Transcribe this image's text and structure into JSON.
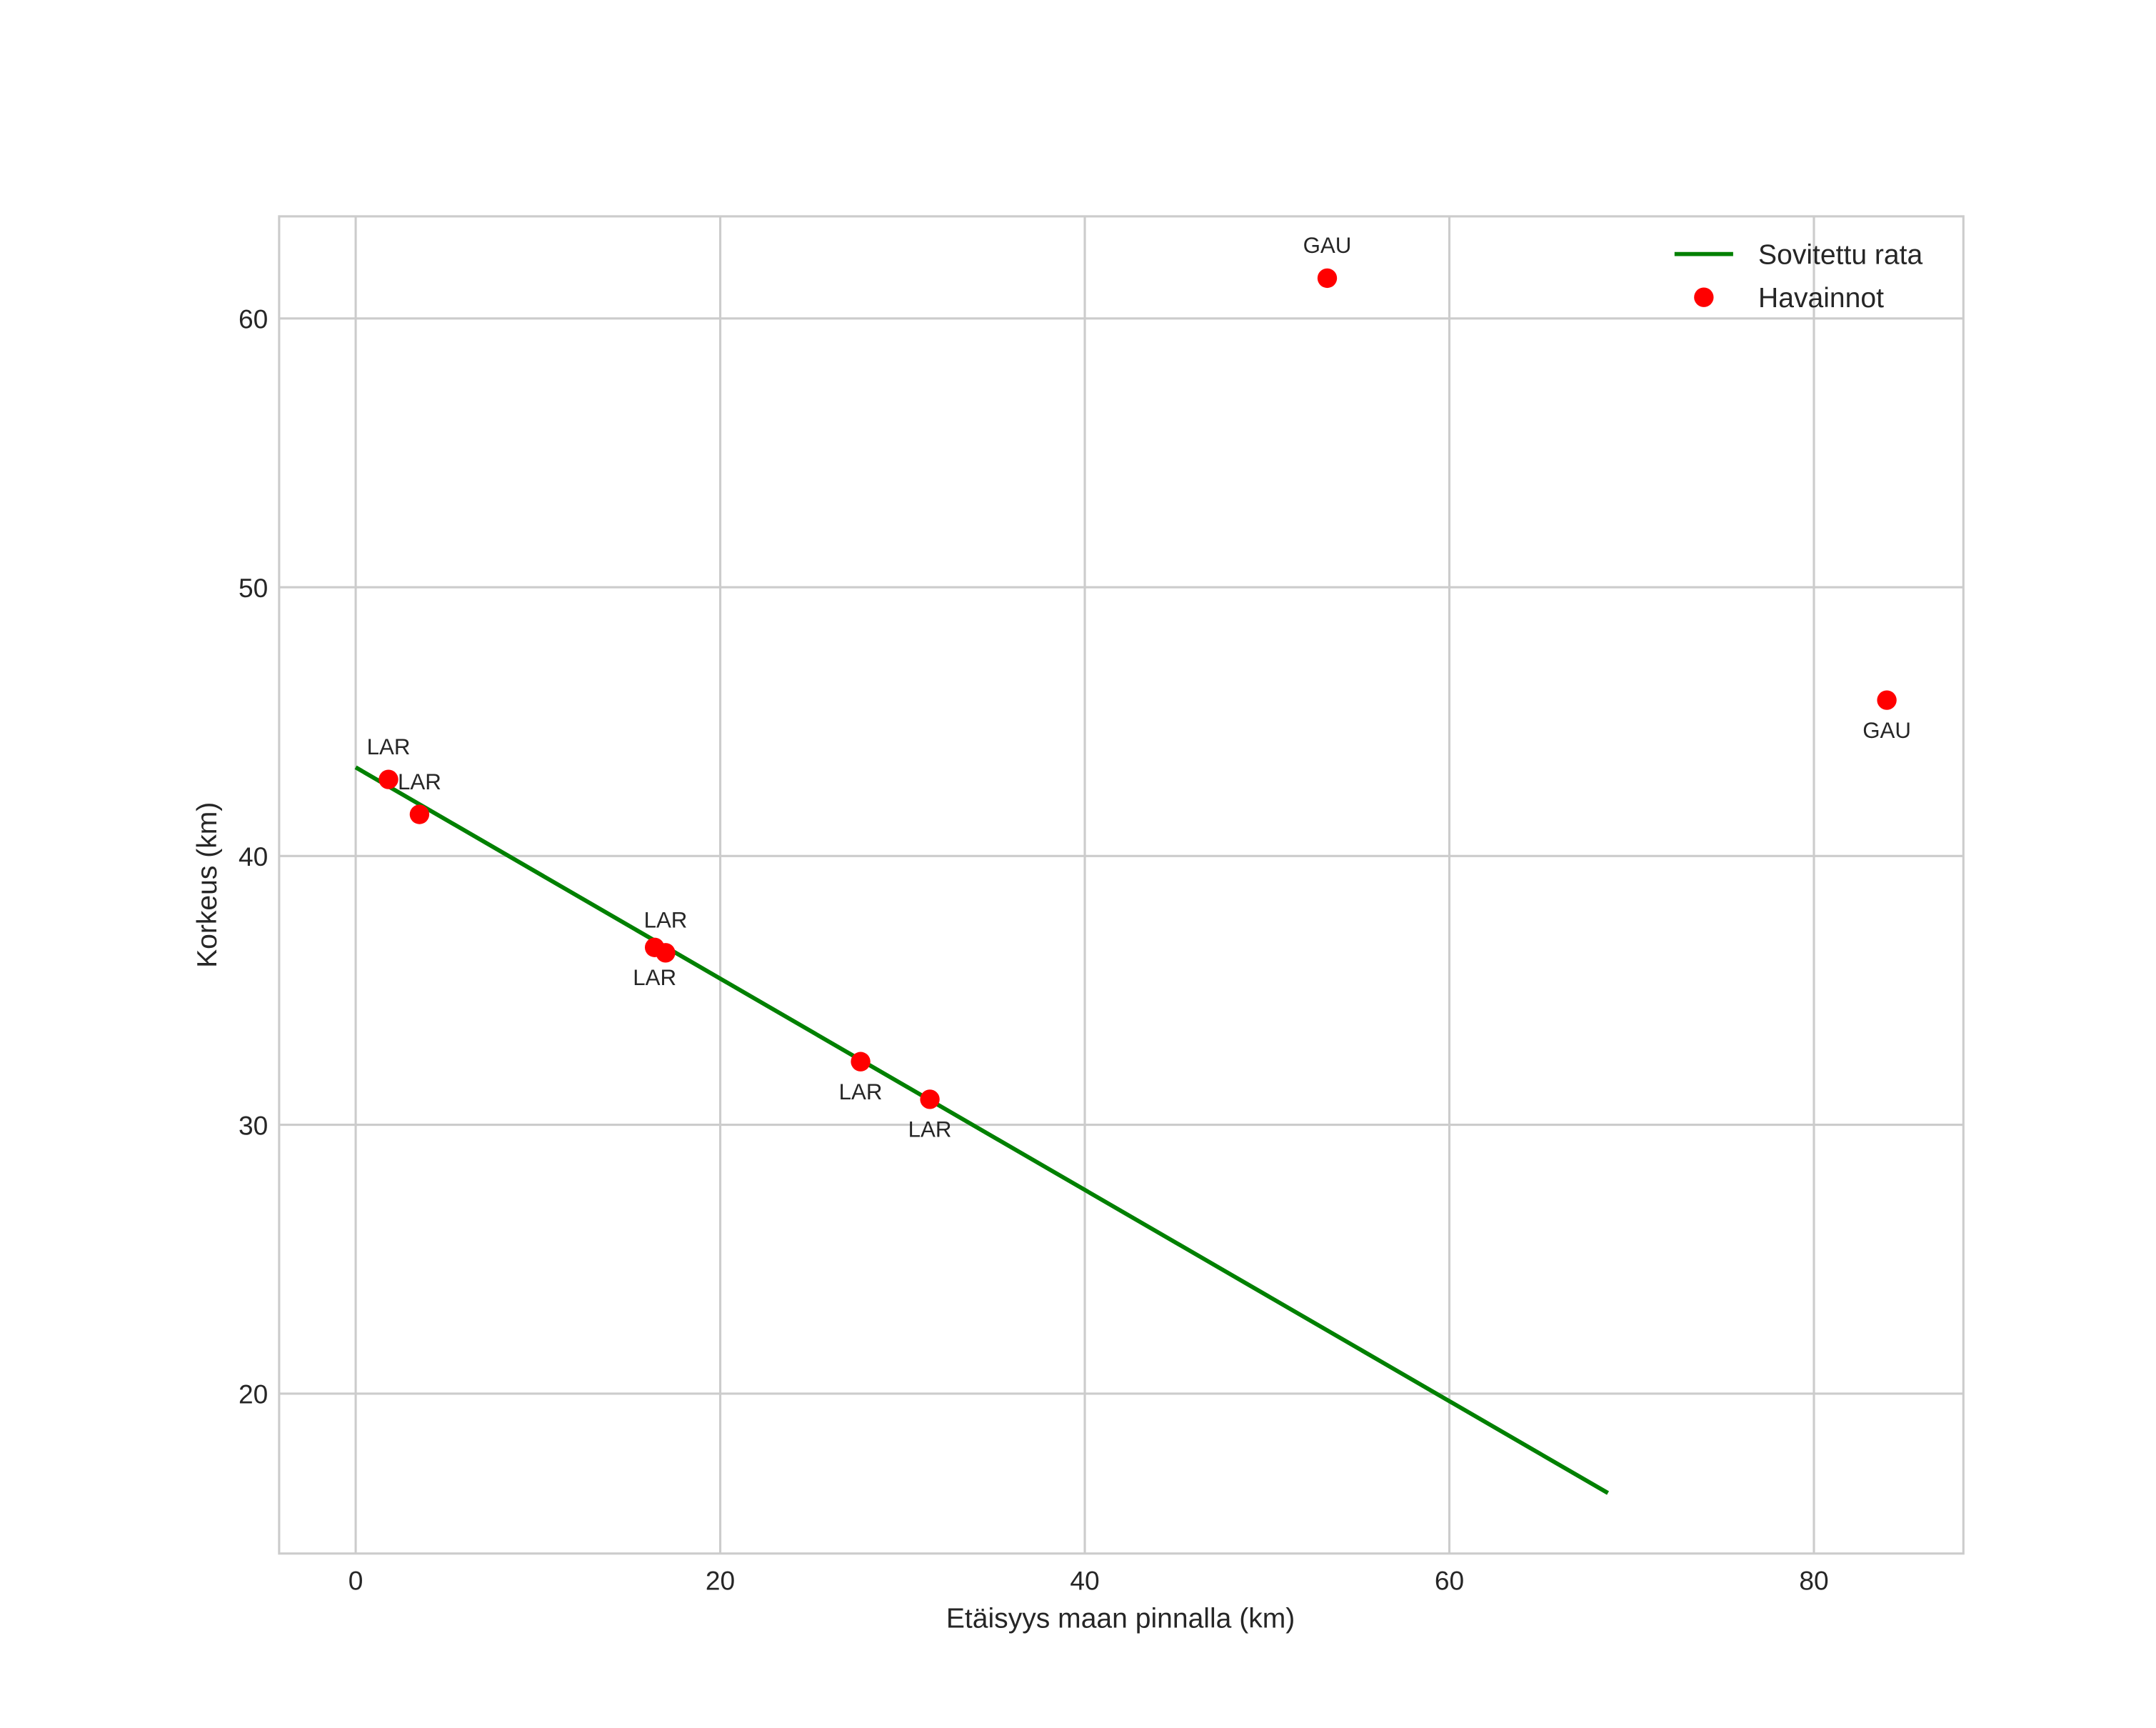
{
  "chart_data": {
    "type": "scatter",
    "title": "",
    "xlabel": "Etäisyys maan pinnalla (km)",
    "ylabel": "Korkeus (km)",
    "xlim": [
      -4.2,
      88.2
    ],
    "ylim": [
      14.05,
      63.8
    ],
    "xticks": [
      0,
      20,
      40,
      60,
      80
    ],
    "yticks": [
      20,
      30,
      40,
      50,
      60
    ],
    "grid": true,
    "legend_placement": "top-right",
    "series": [
      {
        "name": "Sovitettu rata",
        "type": "line",
        "color": "#008000",
        "x": [
          0,
          68.7
        ],
        "y": [
          43.3,
          16.3
        ]
      },
      {
        "name": "Havainnot",
        "type": "scatter",
        "color": "#ff0000",
        "points": [
          {
            "x": 1.8,
            "y": 42.85,
            "label": "LAR",
            "label_pos": "above"
          },
          {
            "x": 3.5,
            "y": 41.55,
            "label": "LAR",
            "label_pos": "above"
          },
          {
            "x": 16.4,
            "y": 36.6,
            "label": "LAR",
            "label_pos": "below"
          },
          {
            "x": 17.0,
            "y": 36.4,
            "label": "LAR",
            "label_pos": "above"
          },
          {
            "x": 27.7,
            "y": 32.35,
            "label": "LAR",
            "label_pos": "below"
          },
          {
            "x": 31.5,
            "y": 30.95,
            "label": "LAR",
            "label_pos": "below"
          },
          {
            "x": 53.3,
            "y": 61.5,
            "label": "GAU",
            "label_pos": "above"
          },
          {
            "x": 84.0,
            "y": 45.8,
            "label": "GAU",
            "label_pos": "below"
          }
        ]
      }
    ]
  }
}
